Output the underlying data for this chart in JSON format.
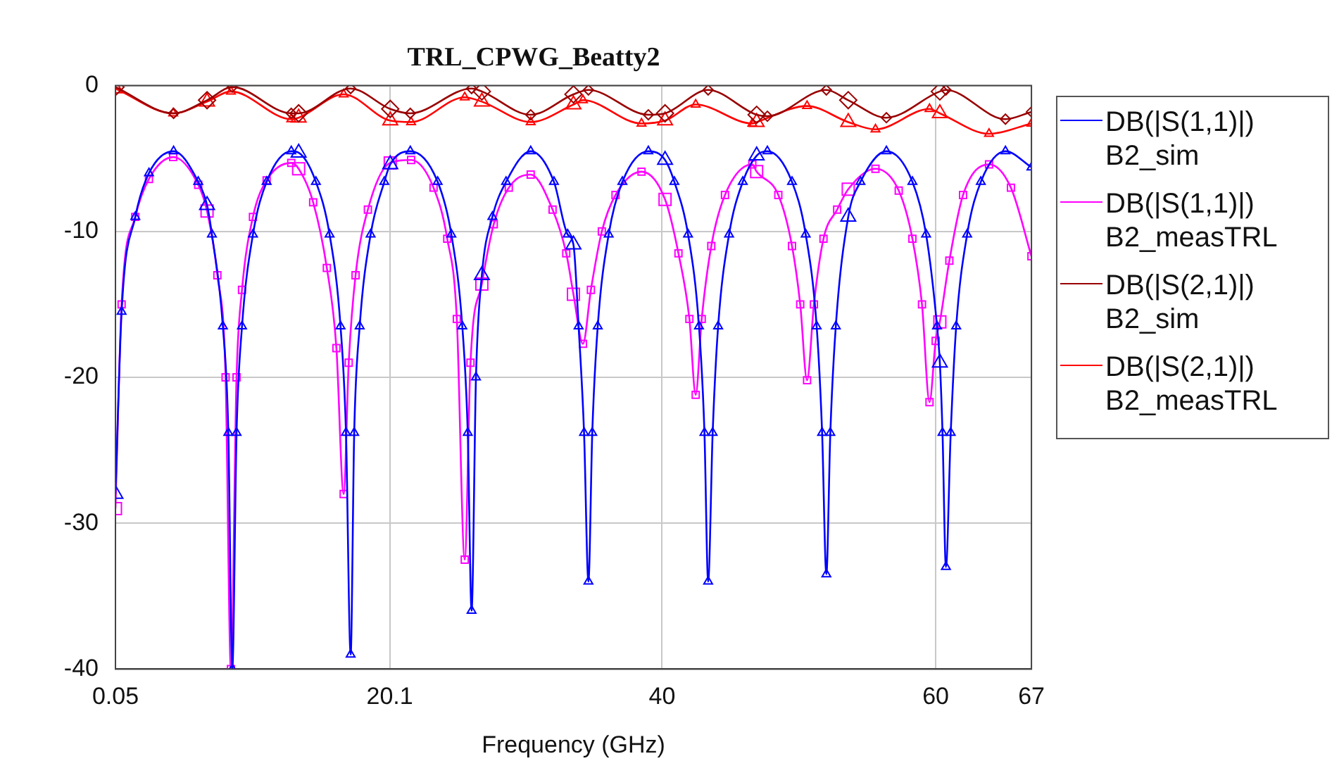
{
  "chart_data": {
    "type": "line",
    "title": "TRL_CPWG_Beatty2",
    "xlabel": "Frequency (GHz)",
    "xlim": [
      0.05,
      67
    ],
    "xticks": [
      0.05,
      20.1,
      40,
      60,
      67
    ],
    "ylim": [
      -40,
      0
    ],
    "yticks": [
      0,
      -10,
      -20,
      -30,
      -40
    ],
    "grid": true,
    "legend": "right",
    "line_style": "solid",
    "series": [
      {
        "name": "DB(|S(1,1)|) B2_sim",
        "color": "#0000ff",
        "marker": "triangle",
        "x": [
          0.05,
          0.5,
          1.5,
          2.5,
          4.3,
          6.1,
          6.745,
          7.1,
          7.9,
          8.3,
          8.59,
          8.9,
          9.3,
          10.1,
          11.1,
          12.9,
          13.44,
          14.7,
          15.7,
          16.5,
          16.9,
          17.24,
          17.5,
          17.9,
          18.7,
          19.7,
          20.135,
          21.6,
          23.6,
          24.6,
          25.4,
          25.8,
          26.08,
          26.4,
          26.83,
          27.6,
          28.6,
          30.4,
          32.1,
          33.1,
          33.525,
          33.9,
          34.3,
          34.62,
          34.9,
          35.3,
          36.1,
          37.1,
          39,
          40.22,
          40.9,
          41.9,
          42.7,
          43.1,
          43.37,
          43.7,
          44.1,
          44.9,
          45.9,
          46.915,
          47.7,
          49.5,
          50.5,
          51.3,
          51.7,
          52.01,
          52.3,
          52.7,
          53.61,
          54.5,
          56.4,
          58.3,
          59.3,
          60.1,
          60.305,
          60.5,
          60.75,
          61.1,
          61.5,
          62.3,
          63.3,
          65.1,
          67
        ],
        "values": [
          -28,
          -15.5,
          -9,
          -6,
          -4.5,
          -6.6,
          -8.2,
          -10.2,
          -16.5,
          -23.8,
          -40,
          -23.8,
          -16.5,
          -10.2,
          -6.6,
          -4.5,
          -4.6,
          -6.6,
          -10.2,
          -16.5,
          -23.8,
          -39,
          -23.8,
          -16.5,
          -10.2,
          -6.6,
          -5.4,
          -4.5,
          -6.6,
          -10.2,
          -16.5,
          -23.8,
          -36,
          -20,
          -13,
          -9,
          -6.6,
          -4.5,
          -6.6,
          -10.2,
          -10.9,
          -16.5,
          -23.8,
          -34,
          -23.8,
          -16.5,
          -10.2,
          -6.6,
          -4.5,
          -5.1,
          -6.6,
          -10.2,
          -16.5,
          -23.8,
          -34,
          -23.8,
          -16.5,
          -10.2,
          -6.6,
          -4.8,
          -4.5,
          -6.6,
          -10.2,
          -16.5,
          -23.8,
          -33.5,
          -23.8,
          -16.5,
          -9,
          -6.6,
          -4.5,
          -6.6,
          -10.2,
          -16.5,
          -19,
          -23.8,
          -33,
          -23.8,
          -16.5,
          -10.2,
          -6.6,
          -4.5,
          -5.6
        ]
      },
      {
        "name": "DB(|S(1,1)|) B2_measTRL",
        "color": "#ff00ff",
        "marker": "square",
        "x": [
          0.05,
          0.5,
          1.5,
          2.5,
          4.27,
          6.1,
          6.745,
          7.5,
          8.1,
          8.49,
          8.9,
          9.3,
          10.1,
          11.1,
          12.9,
          13.44,
          14.5,
          15.5,
          16.2,
          16.73,
          17.1,
          17.6,
          18.5,
          20.135,
          21.66,
          23.3,
          24.3,
          25,
          25.58,
          26,
          26.83,
          27.7,
          28.8,
          30.4,
          32,
          33,
          33.525,
          34.22,
          34.8,
          35.6,
          36.6,
          38.5,
          40.22,
          41.2,
          42,
          42.46,
          42.9,
          43.6,
          44.6,
          46.6,
          46.915,
          48.5,
          49.5,
          50.1,
          50.6,
          51.1,
          51.8,
          52.8,
          53.61,
          55.6,
          57.3,
          58.3,
          59,
          59.55,
          60,
          60.305,
          61,
          62,
          63.9,
          65.5,
          67
        ],
        "values": [
          -29,
          -15,
          -9,
          -6.4,
          -4.9,
          -6.8,
          -8.6,
          -13,
          -20,
          -40,
          -20,
          -14,
          -9,
          -6.5,
          -5.3,
          -5.7,
          -8,
          -12.5,
          -18,
          -28,
          -19,
          -13,
          -8.5,
          -5.3,
          -5.1,
          -7,
          -10.5,
          -16,
          -32.5,
          -19,
          -13.6,
          -9.5,
          -7,
          -6.1,
          -8.5,
          -11.5,
          -14.3,
          -17.7,
          -14,
          -10,
          -7.5,
          -5.9,
          -7.8,
          -11.5,
          -16,
          -21.2,
          -16,
          -11,
          -7.5,
          -5.4,
          -5.9,
          -7.5,
          -11,
          -15,
          -20.2,
          -15,
          -10.5,
          -8.5,
          -7.1,
          -5.7,
          -7.2,
          -10.5,
          -15,
          -21.7,
          -17.5,
          -16.2,
          -12,
          -7.5,
          -5.4,
          -7,
          -11.7
        ]
      },
      {
        "name": "DB(|S(2,1)|) B2_sim",
        "color": "#990000",
        "marker": "diamond",
        "x": [
          0.05,
          4.3,
          6.745,
          8.59,
          12.9,
          13.44,
          17.24,
          20.135,
          21.6,
          26.08,
          26.83,
          30.4,
          33.525,
          34.62,
          39,
          40.22,
          43.37,
          46.915,
          47.7,
          52.01,
          53.61,
          56.4,
          60.305,
          60.75,
          65.1,
          67
        ],
        "values": [
          -0.1,
          -1.9,
          -1,
          -0.1,
          -1.9,
          -1.9,
          -0.2,
          -1.6,
          -1.9,
          -0.2,
          -0.4,
          -2,
          -0.6,
          -0.3,
          -2,
          -1.9,
          -0.3,
          -2,
          -2.1,
          -0.3,
          -1,
          -2.2,
          -0.4,
          -0.3,
          -2.3,
          -1.8
        ]
      },
      {
        "name": "DB(|S(2,1)|) B2_measTRL",
        "color": "#ff0000",
        "marker": "triangle",
        "x": [
          0.05,
          4.27,
          6.745,
          8.49,
          12.9,
          13.44,
          16.73,
          20.135,
          21.66,
          25.58,
          26.83,
          30.4,
          33.525,
          34.22,
          38.5,
          40.22,
          42.46,
          46.6,
          46.915,
          50.6,
          53.61,
          55.6,
          59.55,
          60.305,
          63.9,
          67
        ],
        "values": [
          -0.2,
          -1.9,
          -1.1,
          -0.4,
          -2.3,
          -2.2,
          -0.6,
          -2.4,
          -2.5,
          -0.8,
          -1.1,
          -2.5,
          -1.3,
          -1,
          -2.6,
          -2.4,
          -1.3,
          -2.6,
          -2.5,
          -1.4,
          -2.5,
          -3,
          -1.6,
          -1.9,
          -3.3,
          -2.6
        ]
      }
    ]
  }
}
